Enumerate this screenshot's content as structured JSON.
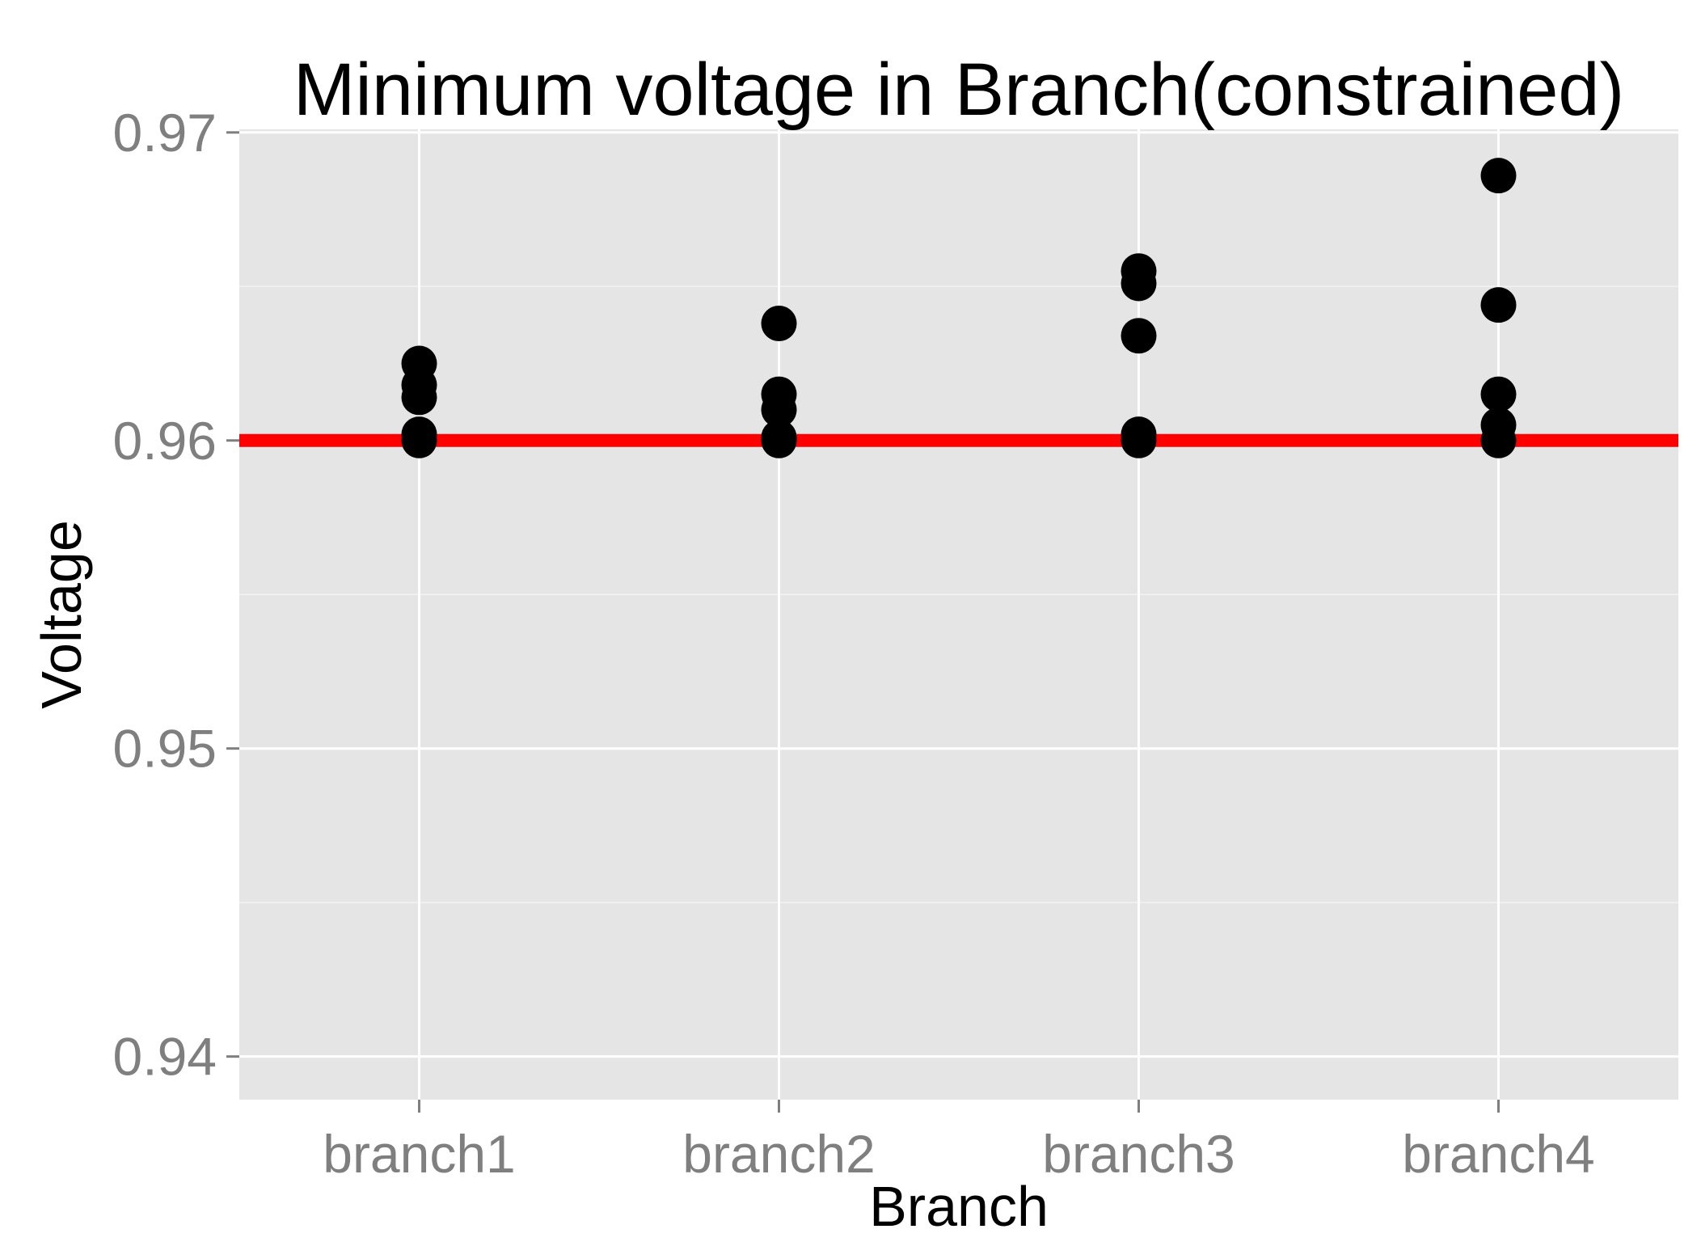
{
  "chart_data": {
    "type": "scatter",
    "title": "Minimum voltage in Branch(constrained)",
    "xlabel": "Branch",
    "ylabel": "Voltage",
    "categories": [
      "branch1",
      "branch2",
      "branch3",
      "branch4"
    ],
    "y_ticks": [
      "0.94",
      "0.95",
      "0.96",
      "0.97"
    ],
    "ylim": [
      0.9386,
      0.9701
    ],
    "grid": true,
    "reference_line": {
      "y": 0.96,
      "color": "#ff0000"
    },
    "points": [
      {
        "x": "branch1",
        "y": 0.9625
      },
      {
        "x": "branch1",
        "y": 0.9618
      },
      {
        "x": "branch1",
        "y": 0.9614
      },
      {
        "x": "branch1",
        "y": 0.9602
      },
      {
        "x": "branch1",
        "y": 0.96
      },
      {
        "x": "branch2",
        "y": 0.9638
      },
      {
        "x": "branch2",
        "y": 0.9615
      },
      {
        "x": "branch2",
        "y": 0.961
      },
      {
        "x": "branch2",
        "y": 0.9601
      },
      {
        "x": "branch2",
        "y": 0.96
      },
      {
        "x": "branch3",
        "y": 0.9655
      },
      {
        "x": "branch3",
        "y": 0.9651
      },
      {
        "x": "branch3",
        "y": 0.9634
      },
      {
        "x": "branch3",
        "y": 0.9602
      },
      {
        "x": "branch3",
        "y": 0.96
      },
      {
        "x": "branch4",
        "y": 0.9686
      },
      {
        "x": "branch4",
        "y": 0.9644
      },
      {
        "x": "branch4",
        "y": 0.9615
      },
      {
        "x": "branch4",
        "y": 0.9605
      },
      {
        "x": "branch4",
        "y": 0.96
      }
    ],
    "colors": {
      "panel": "#e5e5e5",
      "grid": "#ffffff",
      "points": "#000000",
      "reference_line": "#ff0000",
      "tick_label": "#7f7f7f",
      "tick_mark": "#7f7f7f"
    }
  }
}
